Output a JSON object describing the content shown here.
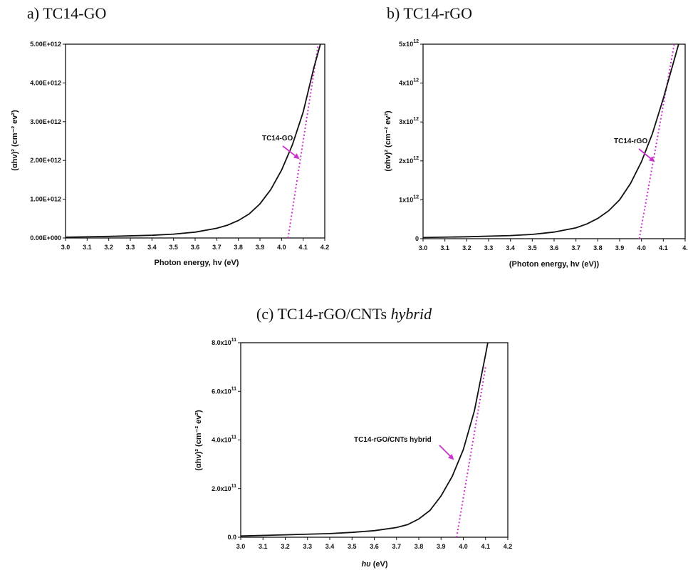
{
  "chart_data": [
    {
      "type": "line",
      "panel_title": "a)  TC14-GO",
      "xlabel": "Photon energy, hv (eV)",
      "ylabel": "(αhv)² (cm⁻² ev²)",
      "xlim": [
        3.0,
        4.2
      ],
      "ylim": [
        0,
        5000000000000.0
      ],
      "x_ticks": [
        "3.0",
        "3.1",
        "3.2",
        "3.3",
        "3.4",
        "3.5",
        "3.6",
        "3.7",
        "3.8",
        "3.9",
        "4.0",
        "4.1",
        "4.2"
      ],
      "y_ticks": [
        "0.00E+000",
        "1.00E+012",
        "2.00E+012",
        "3.00E+012",
        "4.00E+012",
        "5.00E+012"
      ],
      "y_tick_style": "plain",
      "annotation": "TC14-GO",
      "series": [
        {
          "x": [
            3.0,
            3.2,
            3.4,
            3.5,
            3.6,
            3.7,
            3.75,
            3.8,
            3.85,
            3.9,
            3.95,
            4.0,
            4.05,
            4.1,
            4.15,
            4.18
          ],
          "y": [
            20000000000.0,
            40000000000.0,
            70000000000.0,
            100000000000.0,
            150000000000.0,
            250000000000.0,
            330000000000.0,
            450000000000.0,
            620000000000.0,
            880000000000.0,
            1250000000000.0,
            1750000000000.0,
            2400000000000.0,
            3250000000000.0,
            4400000000000.0,
            5000000000000.0
          ]
        }
      ],
      "tangent": {
        "x": [
          4.03,
          4.17
        ],
        "y": [
          0,
          5000000000000.0
        ]
      },
      "grid": false
    },
    {
      "type": "line",
      "panel_title": "b)  TC14-rGO",
      "xlabel": "(Photon energy, hv (eV))",
      "ylabel": "(αhv)² (cm⁻² ev²)",
      "xlim": [
        3.0,
        4.2
      ],
      "ylim": [
        0,
        5000000000000.0
      ],
      "x_ticks": [
        "3.0",
        "3.1",
        "3.2",
        "3.3",
        "3.4",
        "3.5",
        "3.6",
        "3.7",
        "3.8",
        "3.9",
        "4.0",
        "4.1",
        "4."
      ],
      "y_ticks": [
        {
          "text": "0",
          "exp": ""
        },
        {
          "text": "1x10",
          "exp": "12"
        },
        {
          "text": "2x10",
          "exp": "12"
        },
        {
          "text": "3x10",
          "exp": "12"
        },
        {
          "text": "4x10",
          "exp": "12"
        },
        {
          "text": "5x10",
          "exp": "12"
        }
      ],
      "y_tick_style": "sci",
      "annotation": "TC14-rGO",
      "series": [
        {
          "x": [
            3.0,
            3.2,
            3.4,
            3.5,
            3.6,
            3.7,
            3.75,
            3.8,
            3.85,
            3.9,
            3.95,
            4.0,
            4.05,
            4.1,
            4.15,
            4.17
          ],
          "y": [
            30000000000.0,
            50000000000.0,
            80000000000.0,
            110000000000.0,
            170000000000.0,
            280000000000.0,
            380000000000.0,
            520000000000.0,
            720000000000.0,
            1000000000000.0,
            1420000000000.0,
            1980000000000.0,
            2700000000000.0,
            3600000000000.0,
            4600000000000.0,
            5000000000000.0
          ]
        }
      ],
      "tangent": {
        "x": [
          3.99,
          4.15
        ],
        "y": [
          0,
          5000000000000.0
        ]
      },
      "grid": false
    },
    {
      "type": "line",
      "panel_title_main": "(c) TC14-rGO/CNTs ",
      "panel_title_italic": "hybrid",
      "xlabel_italic": "hυ",
      "xlabel": " (eV)",
      "ylabel": "(αhv)² (cm⁻² ev²)",
      "xlim": [
        3.0,
        4.2
      ],
      "ylim": [
        0,
        800000000000.0
      ],
      "x_ticks": [
        "3.0",
        "3.1",
        "3.2",
        "3.3",
        "3.4",
        "3.5",
        "3.6",
        "3.7",
        "3.8",
        "3.9",
        "4.0",
        "4.1",
        "4.2"
      ],
      "y_ticks": [
        {
          "text": "0.0",
          "exp": ""
        },
        {
          "text": "2.0x10",
          "exp": "11"
        },
        {
          "text": "4.0x10",
          "exp": "11"
        },
        {
          "text": "6.0x10",
          "exp": "11"
        },
        {
          "text": "8.0x10",
          "exp": "11"
        }
      ],
      "y_tick_style": "sci",
      "annotation": "TC14-rGO/CNTs hybrid",
      "series": [
        {
          "x": [
            3.0,
            3.2,
            3.4,
            3.5,
            3.6,
            3.7,
            3.75,
            3.8,
            3.85,
            3.9,
            3.95,
            4.0,
            4.05,
            4.1,
            4.11
          ],
          "y": [
            5000000000.0,
            10000000000.0,
            15000000000.0,
            20000000000.0,
            27000000000.0,
            40000000000.0,
            52000000000.0,
            75000000000.0,
            110000000000.0,
            170000000000.0,
            250000000000.0,
            360000000000.0,
            520000000000.0,
            750000000000.0,
            800000000000.0
          ]
        }
      ],
      "tangent": {
        "x": [
          3.97,
          4.1
        ],
        "y": [
          0,
          700000000000.0
        ]
      },
      "grid": false
    }
  ],
  "colors": {
    "curve": "#111111",
    "tangent": "#cc33cc",
    "arrow": "#cc33cc"
  }
}
